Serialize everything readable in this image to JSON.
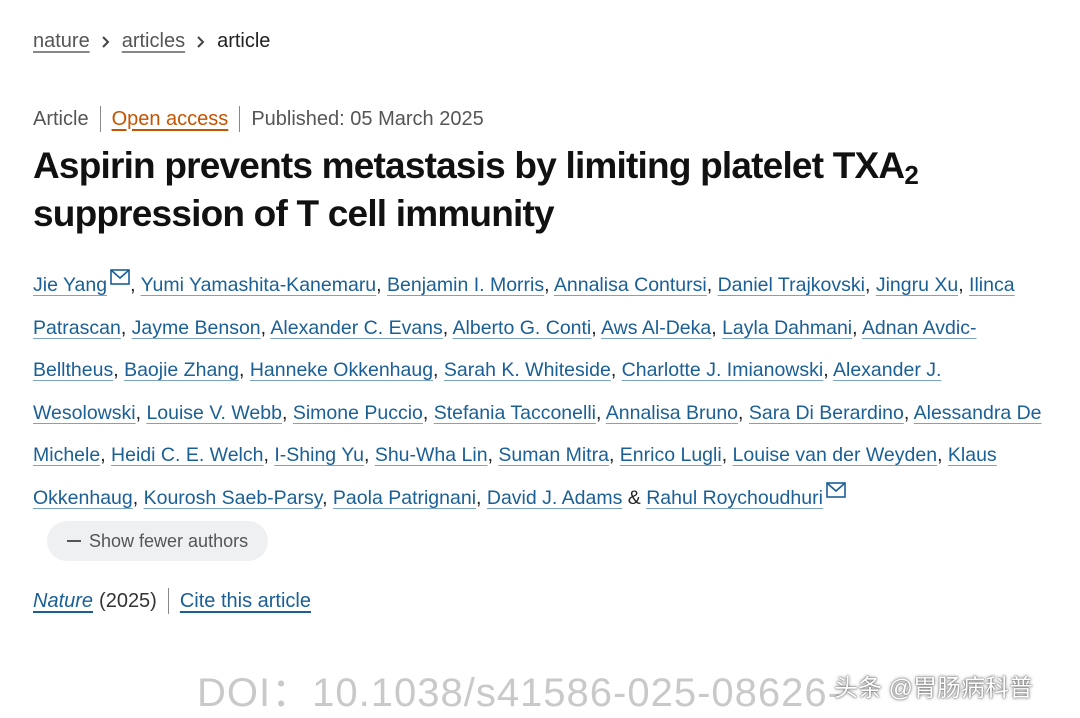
{
  "breadcrumb": [
    "nature",
    "articles",
    "article"
  ],
  "meta": {
    "type": "Article",
    "access": "Open access",
    "published": "Published: 05 March 2025"
  },
  "title": {
    "main": "Aspirin prevents metastasis by limiting platelet TXA",
    "subscript": "2",
    "rest": "suppression of T cell immunity"
  },
  "authors": {
    "list": [
      {
        "name": "Jie Yang",
        "corresponding": true
      },
      {
        "name": "Yumi Yamashita-Kanemaru"
      },
      {
        "name": "Benjamin I. Morris"
      },
      {
        "name": "Annalisa Contursi"
      },
      {
        "name": "Daniel Trajkovski"
      },
      {
        "name": "Jingru Xu"
      },
      {
        "name": "Ilinca Patrascan"
      },
      {
        "name": "Jayme Benson"
      },
      {
        "name": "Alexander C. Evans"
      },
      {
        "name": "Alberto G. Conti"
      },
      {
        "name": "Aws Al-Deka"
      },
      {
        "name": "Layla Dahmani"
      },
      {
        "name": "Adnan Avdic-Belltheus"
      },
      {
        "name": "Baojie Zhang"
      },
      {
        "name": "Hanneke Okkenhaug"
      },
      {
        "name": "Sarah K. Whiteside"
      },
      {
        "name": "Charlotte J. Imianowski"
      },
      {
        "name": "Alexander J. Wesolowski"
      },
      {
        "name": "Louise V. Webb"
      },
      {
        "name": "Simone Puccio"
      },
      {
        "name": "Stefania Tacconelli"
      },
      {
        "name": "Annalisa Bruno"
      },
      {
        "name": "Sara Di Berardino"
      },
      {
        "name": "Alessandra De Michele"
      },
      {
        "name": "Heidi C. E. Welch"
      },
      {
        "name": "I-Shing Yu"
      },
      {
        "name": "Shu-Wha Lin"
      },
      {
        "name": "Suman Mitra"
      },
      {
        "name": "Enrico Lugli"
      },
      {
        "name": "Louise van der Weyden"
      },
      {
        "name": "Klaus Okkenhaug"
      },
      {
        "name": "Kourosh Saeb-Parsy"
      },
      {
        "name": "Paola Patrignani"
      },
      {
        "name": "David J. Adams"
      },
      {
        "name": "Rahul Roychoudhuri",
        "corresponding": true
      }
    ],
    "separator": ",",
    "conjunction": "&",
    "toggle": "Show fewer authors"
  },
  "citation": {
    "journal": "Nature",
    "year": "(2025)",
    "cite": "Cite this article"
  },
  "watermark": {
    "doi": "DOI：10.1038/s41586-025-08626-",
    "source": "头条 @胃肠病科普"
  }
}
